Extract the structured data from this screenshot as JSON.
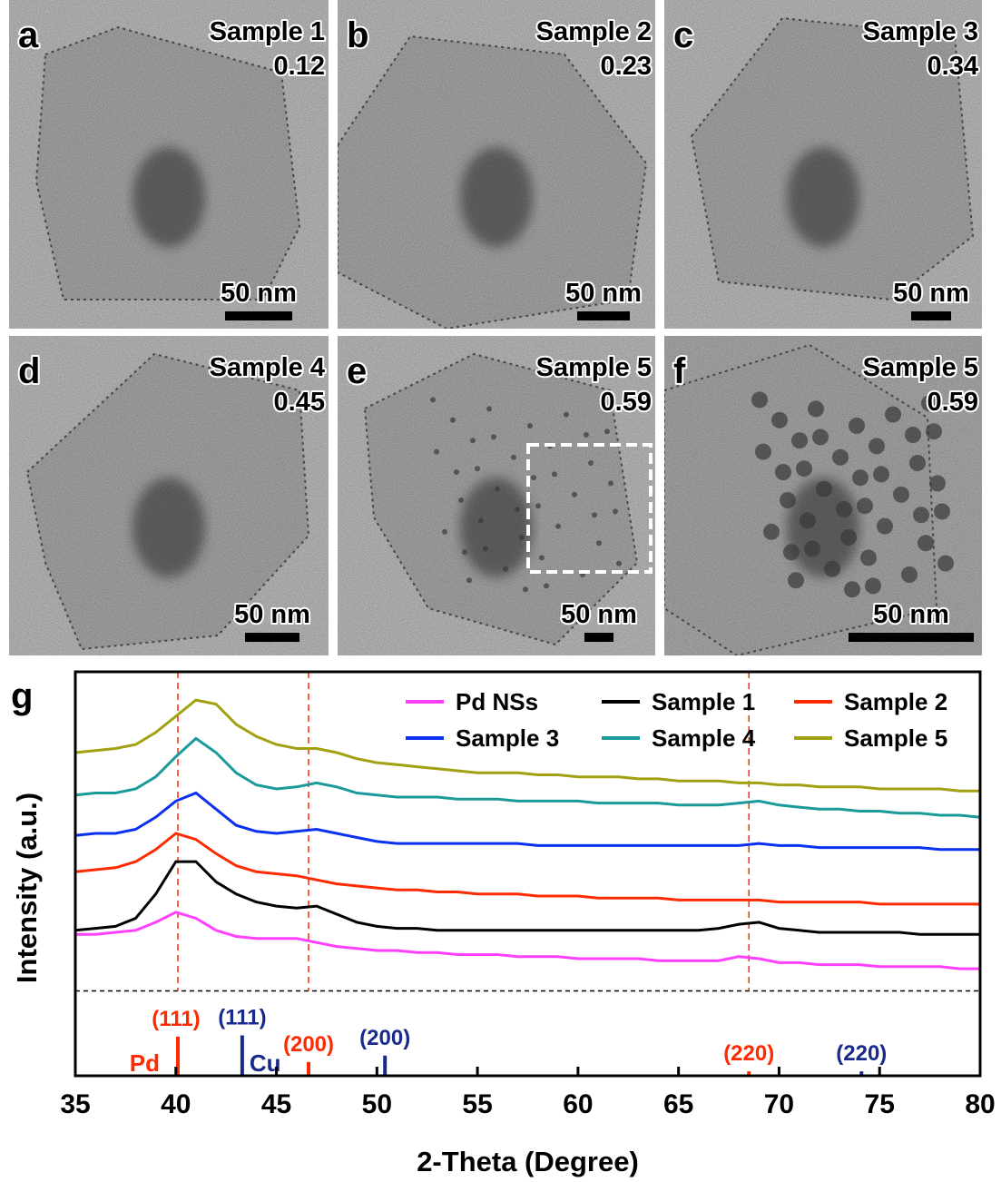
{
  "panels": [
    {
      "letter": "a",
      "sample": "Sample 1",
      "value": "0.12",
      "scale": "50 nm"
    },
    {
      "letter": "b",
      "sample": "Sample 2",
      "value": "0.23",
      "scale": "50 nm"
    },
    {
      "letter": "c",
      "sample": "Sample 3",
      "value": "0.34",
      "scale": "50 nm"
    },
    {
      "letter": "d",
      "sample": "Sample 4",
      "value": "0.45",
      "scale": "50 nm"
    },
    {
      "letter": "e",
      "sample": "Sample 5",
      "value": "0.59",
      "scale": "50 nm"
    },
    {
      "letter": "f",
      "sample": "Sample 5",
      "value": "0.59",
      "scale": "50 nm"
    }
  ],
  "chart_data": {
    "type": "line",
    "panel_label": "g",
    "xlabel": "2-Theta (Degree)",
    "ylabel": "Intensity (a.u.)",
    "xlim": [
      35,
      80
    ],
    "xticks": [
      35,
      40,
      45,
      50,
      55,
      60,
      65,
      70,
      75,
      80
    ],
    "ylim": [
      0,
      100
    ],
    "baseline": 21,
    "legend": "top-right",
    "x": [
      35,
      36,
      37,
      38,
      39,
      40,
      41,
      42,
      43,
      44,
      45,
      46,
      47,
      48,
      49,
      50,
      51,
      52,
      53,
      54,
      55,
      56,
      57,
      58,
      59,
      60,
      61,
      62,
      63,
      64,
      65,
      66,
      67,
      68,
      69,
      70,
      71,
      72,
      73,
      74,
      75,
      76,
      77,
      78,
      79,
      80
    ],
    "series": [
      {
        "name": "Pd NSs",
        "color": "#ff40ff",
        "values": [
          35,
          35,
          35.5,
          36,
          38,
          40.5,
          39,
          36,
          34.5,
          34,
          34,
          34,
          33,
          32,
          31.5,
          31,
          31,
          30.5,
          30.5,
          30,
          30,
          30,
          29.5,
          29.5,
          29.5,
          29,
          29,
          29,
          29,
          28.5,
          28.5,
          28.5,
          28.5,
          29.5,
          29,
          28,
          28,
          27.5,
          27.5,
          27.5,
          27,
          27,
          27,
          27,
          26.5,
          26.5
        ]
      },
      {
        "name": "Sample 1",
        "color": "#000000",
        "values": [
          36,
          36.5,
          37,
          39,
          45,
          53,
          53,
          48,
          45,
          43,
          42,
          41.5,
          42,
          40,
          38,
          37,
          36.5,
          36.5,
          36,
          36,
          36,
          36,
          36,
          36,
          36,
          36,
          36,
          36,
          36,
          36,
          36,
          36,
          36.5,
          37.5,
          38,
          36.5,
          36,
          35.5,
          35.5,
          35.5,
          35.5,
          35.5,
          35,
          35,
          35,
          35
        ]
      },
      {
        "name": "Sample 2",
        "color": "#ff2a00",
        "values": [
          50.5,
          51,
          51.5,
          53,
          56,
          60,
          58.5,
          55,
          52,
          50.5,
          50,
          49.5,
          48.5,
          47.5,
          47,
          46.5,
          46,
          46,
          45.5,
          45.5,
          45,
          45,
          45,
          44.5,
          44.5,
          44.5,
          44,
          44,
          44,
          44,
          43.5,
          43.5,
          43.5,
          43.5,
          43.5,
          43,
          43,
          43,
          43,
          43,
          42.5,
          42.5,
          42.5,
          42.5,
          42.5,
          42.5
        ]
      },
      {
        "name": "Sample 3",
        "color": "#0a30f0",
        "values": [
          59.5,
          60,
          60,
          61,
          64,
          68,
          70,
          66,
          62,
          60.5,
          60,
          60.5,
          61,
          60,
          59,
          58,
          57.5,
          57.5,
          57.5,
          57.5,
          57.5,
          57.5,
          57.5,
          57,
          57,
          57,
          57,
          57,
          57,
          57,
          57,
          57,
          57,
          57,
          57.5,
          57,
          57,
          56.5,
          56.5,
          56.5,
          56.5,
          56.5,
          56.5,
          56,
          56,
          56
        ]
      },
      {
        "name": "Sample 4",
        "color": "#1a9a9a",
        "values": [
          69.5,
          70,
          70,
          71,
          74,
          79,
          83.5,
          80,
          75,
          72,
          71,
          71.5,
          72.5,
          71.5,
          70,
          69.5,
          69,
          69,
          69,
          68.5,
          68.5,
          68.5,
          68,
          68,
          68,
          68,
          67.5,
          67.5,
          67.5,
          67.5,
          67,
          67,
          67,
          67.5,
          68,
          67,
          66.5,
          66,
          66,
          65.5,
          65.5,
          65,
          65,
          64.5,
          64.5,
          64
        ]
      },
      {
        "name": "Sample 5",
        "color": "#a0a010",
        "values": [
          80,
          80.5,
          81,
          82,
          85,
          89,
          93,
          92,
          87,
          84,
          82,
          81,
          81,
          80,
          78.5,
          77.5,
          77,
          76.5,
          76,
          75.5,
          75,
          75,
          75,
          74.5,
          74.5,
          74,
          74,
          74,
          73.5,
          73.5,
          73,
          73,
          73,
          72.5,
          72.5,
          72,
          72,
          71.5,
          71.5,
          71.5,
          71,
          71,
          71,
          71,
          70.5,
          70.5
        ]
      }
    ],
    "references": [
      {
        "name": "Pd",
        "color": "#ff2a00",
        "guides": true,
        "peaks": [
          40.1,
          46.6,
          68.5
        ],
        "heights": [
          9.7,
          3.4,
          1.1
        ],
        "labels": [
          "(111)",
          "(200)",
          "(220)"
        ]
      },
      {
        "name": "Cu",
        "color": "#1a2a8a",
        "guides": false,
        "peaks": [
          43.3,
          50.4,
          74.1
        ],
        "heights": [
          10,
          5,
          1.1
        ],
        "labels": [
          "(111)",
          "(200)",
          "(220)"
        ]
      }
    ]
  }
}
